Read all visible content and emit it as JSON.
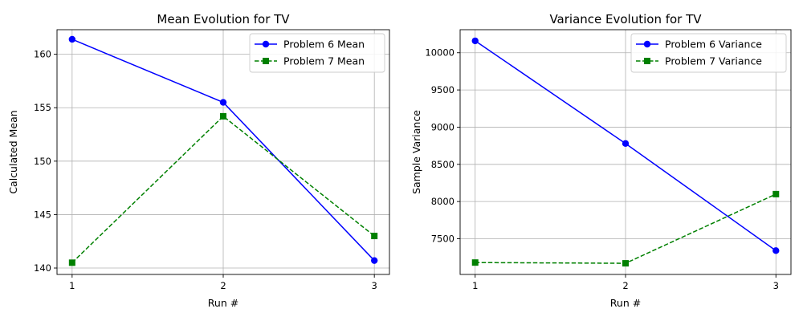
{
  "chart_data": [
    {
      "type": "line",
      "title": "Mean Evolution for TV",
      "xlabel": "Run #",
      "ylabel": "Calculated Mean",
      "x": [
        1,
        2,
        3
      ],
      "x_tick_labels": [
        "1",
        "2",
        "3"
      ],
      "xlim": [
        0.9,
        3.1
      ],
      "ylim": [
        139.4,
        162.3
      ],
      "y_ticks": [
        140,
        145,
        150,
        155,
        160
      ],
      "grid": true,
      "legend_position": "top-right",
      "series": [
        {
          "name": "Problem 6 Mean",
          "values": [
            161.4,
            155.5,
            140.7
          ],
          "color": "#0000ff",
          "line_style": "solid",
          "marker": "circle"
        },
        {
          "name": "Problem 7 Mean",
          "values": [
            140.5,
            154.2,
            143.0
          ],
          "color": "#008000",
          "line_style": "dashed",
          "marker": "square"
        }
      ]
    },
    {
      "type": "line",
      "title": "Variance Evolution for TV",
      "xlabel": "Run #",
      "ylabel": "Sample Variance",
      "x": [
        1,
        2,
        3
      ],
      "x_tick_labels": [
        "1",
        "2",
        "3"
      ],
      "xlim": [
        0.9,
        3.1
      ],
      "ylim": [
        7020,
        10310
      ],
      "y_ticks": [
        7500,
        8000,
        8500,
        9000,
        9500,
        10000
      ],
      "grid": true,
      "legend_position": "top-right",
      "series": [
        {
          "name": "Problem 6 Variance",
          "values": [
            10160,
            8780,
            7340
          ],
          "color": "#0000ff",
          "line_style": "solid",
          "marker": "circle"
        },
        {
          "name": "Problem 7 Variance",
          "values": [
            7180,
            7170,
            8100
          ],
          "color": "#008000",
          "line_style": "dashed",
          "marker": "square"
        }
      ]
    }
  ]
}
